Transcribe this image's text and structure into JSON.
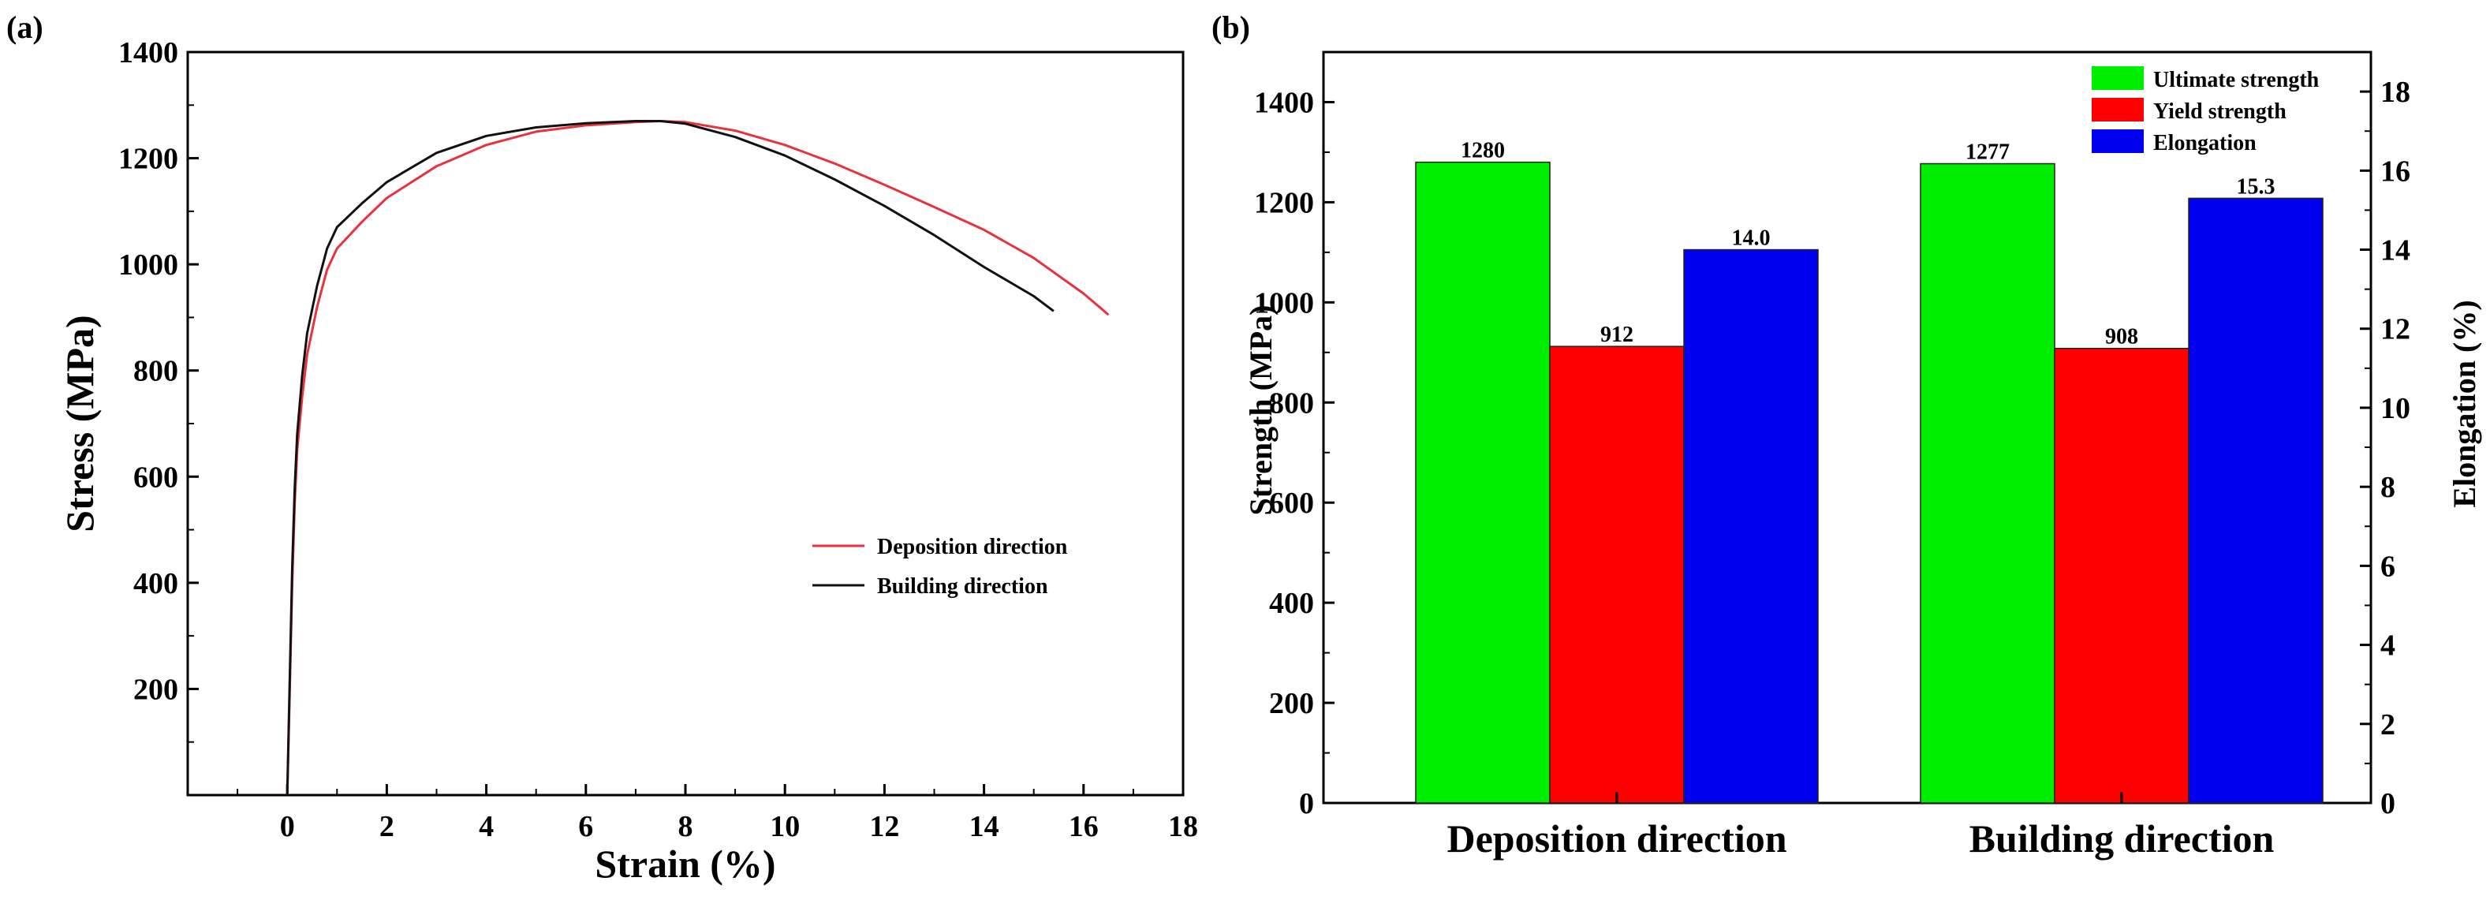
{
  "chart_data": [
    {
      "panel": "(a)",
      "type": "line",
      "xlabel": "Strain (%)",
      "ylabel": "Stress (MPa)",
      "xlim": [
        -2,
        18
      ],
      "ylim": [
        0,
        1400
      ],
      "xticks": [
        0,
        2,
        4,
        6,
        8,
        10,
        12,
        14,
        16,
        18
      ],
      "yticks": [
        200,
        400,
        600,
        800,
        1000,
        1200,
        1400
      ],
      "legend_position": "middle-right",
      "series": [
        {
          "name": "Deposition direction",
          "color": "#e8323c",
          "x": [
            0.0,
            0.05,
            0.1,
            0.15,
            0.2,
            0.3,
            0.4,
            0.6,
            0.8,
            1.0,
            1.5,
            2.0,
            3.0,
            4.0,
            5.0,
            6.0,
            7.0,
            7.5,
            8.0,
            9.0,
            10.0,
            11.0,
            12.0,
            13.0,
            14.0,
            15.0,
            16.0,
            16.5
          ],
          "y": [
            0,
            200,
            400,
            550,
            650,
            750,
            830,
            920,
            990,
            1030,
            1080,
            1125,
            1185,
            1225,
            1250,
            1262,
            1268,
            1270,
            1268,
            1252,
            1225,
            1190,
            1150,
            1108,
            1065,
            1012,
            945,
            905
          ]
        },
        {
          "name": "Building direction",
          "color": "#111111",
          "x": [
            0.0,
            0.05,
            0.1,
            0.15,
            0.2,
            0.3,
            0.4,
            0.6,
            0.8,
            1.0,
            1.5,
            2.0,
            3.0,
            4.0,
            5.0,
            6.0,
            7.0,
            7.5,
            8.0,
            9.0,
            10.0,
            11.0,
            12.0,
            13.0,
            14.0,
            15.0,
            15.4
          ],
          "y": [
            0,
            220,
            430,
            580,
            680,
            790,
            870,
            960,
            1030,
            1070,
            1115,
            1155,
            1210,
            1242,
            1258,
            1266,
            1270,
            1270,
            1265,
            1240,
            1205,
            1160,
            1110,
            1055,
            995,
            940,
            912
          ]
        }
      ]
    },
    {
      "panel": "(b)",
      "type": "bar",
      "categories": [
        "Deposition direction",
        "Building direction"
      ],
      "ylabel": "Strength (MPa)",
      "y2label": "Elongation (%)",
      "ylim": [
        0,
        1500
      ],
      "y2lim": [
        0,
        19
      ],
      "yticks": [
        0,
        200,
        400,
        600,
        800,
        1000,
        1200,
        1400
      ],
      "y2ticks": [
        0,
        2,
        4,
        6,
        8,
        10,
        12,
        14,
        16,
        18
      ],
      "legend_position": "top-right",
      "series": [
        {
          "name": "Ultimate strength",
          "color": "#00ee00",
          "axis": "left",
          "values": [
            1280,
            1277
          ],
          "labels": [
            "1280",
            "1277"
          ]
        },
        {
          "name": "Yield strength",
          "color": "#ff0000",
          "axis": "left",
          "values": [
            912,
            908
          ],
          "labels": [
            "912",
            "908"
          ]
        },
        {
          "name": "Elongation",
          "color": "#0000ee",
          "axis": "right",
          "values": [
            14.0,
            15.3
          ],
          "labels": [
            "14.0",
            "15.3"
          ]
        }
      ]
    }
  ]
}
